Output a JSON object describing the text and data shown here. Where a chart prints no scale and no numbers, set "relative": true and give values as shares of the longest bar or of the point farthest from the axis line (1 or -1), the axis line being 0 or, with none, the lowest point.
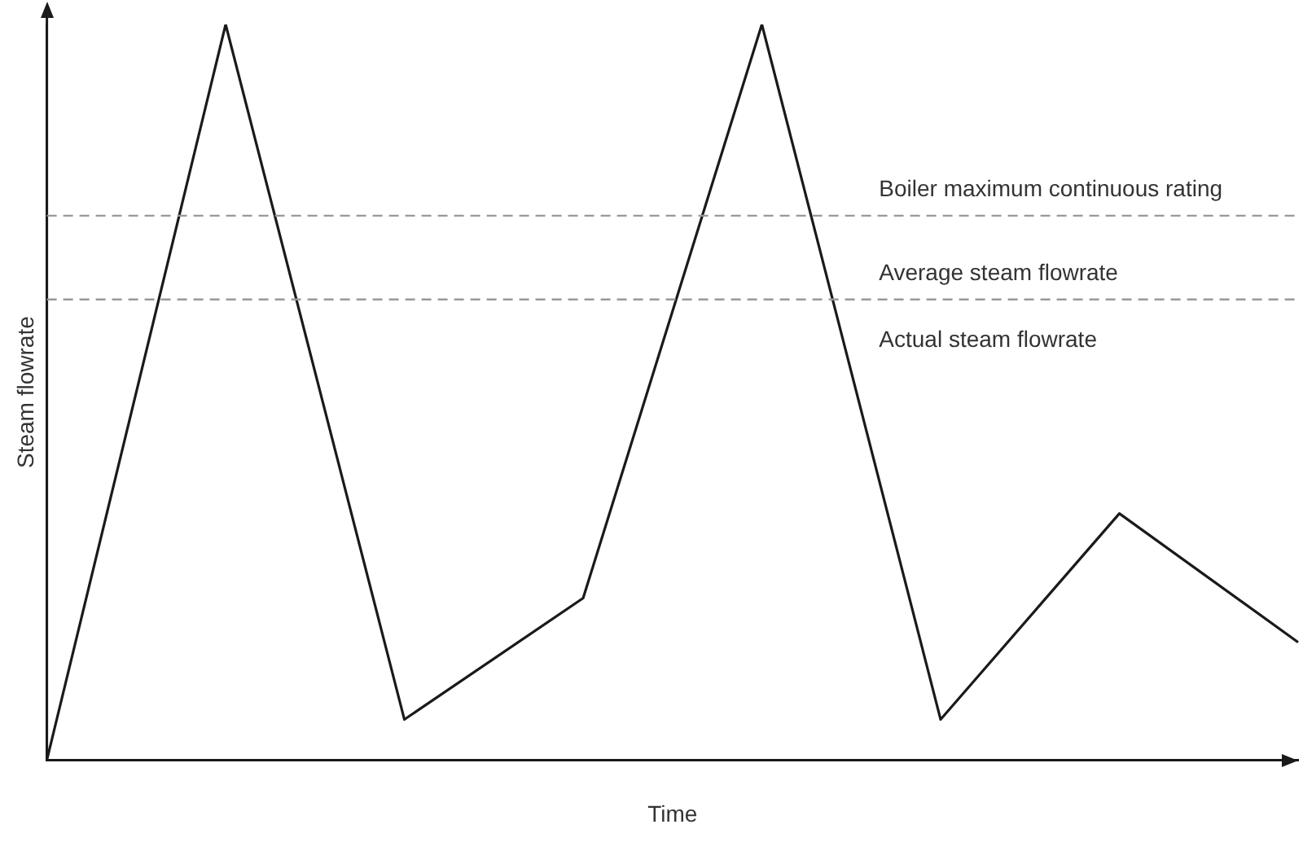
{
  "chart_data": {
    "type": "line",
    "xlabel": "Time",
    "ylabel": "Steam flowrate",
    "relative": true,
    "marker": "none",
    "line_style": "solid",
    "categories": [
      null,
      null,
      null,
      null,
      null,
      null,
      null,
      null
    ],
    "series": [
      {
        "name": "Actual steam flowrate",
        "color": "#1a1a1a",
        "values": [
          0,
          1,
          0.055,
          0.22,
          1,
          0.055,
          0.335,
          0.16
        ]
      }
    ],
    "ref_lines": [
      {
        "axis": "y",
        "value": 0.74,
        "label": "Boiler maximum continuous rating",
        "color": "#999999",
        "line_style": "dashed"
      },
      {
        "axis": "y",
        "value": 0.626,
        "label": "Average steam flowrate",
        "color": "#999999",
        "line_style": "dashed"
      }
    ]
  }
}
